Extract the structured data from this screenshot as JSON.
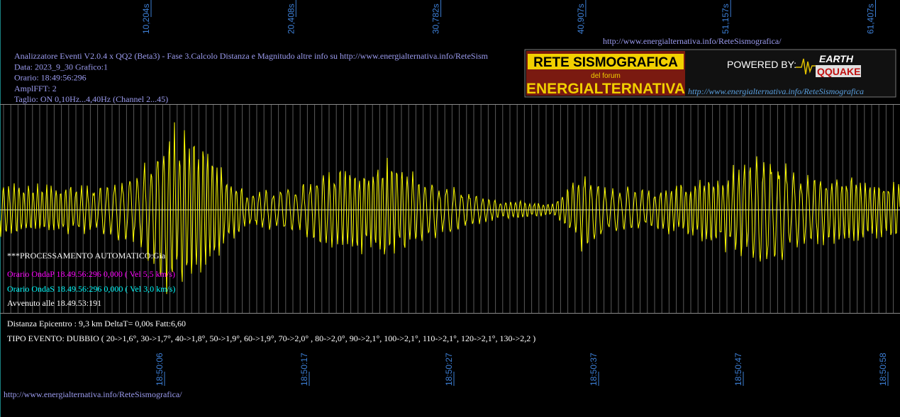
{
  "top_time_labels": [
    "10,204s",
    "20,408s",
    "30,782s",
    "40,907s",
    "51,157s",
    "61,407s"
  ],
  "header_url": "http://www.energialternativa.info/ReteSismografica/",
  "info_lines": [
    "Analizzatore Eventi V2.0.4 x QQ2 (Beta3) - Fase 3.Calcolo Distanza e Magnitudo altre info su http://www.energialternativa.info/ReteSism",
    "Data: 2023_9_30 Grafico:1",
    "Orario: 18:49:56:296",
    "AmplFFT: 2",
    "Taglio: ON 0,10Hz...4,40Hz       (Channel 2...45)"
  ],
  "logo": {
    "title": "RETE SISMOGRAFICA",
    "subtitle": "del forum",
    "brand": "ENERGIALTERNATIVA",
    "powered": "POWERED BY:",
    "earth": "EARTH",
    "quake": "QQUAKE",
    "url": "http://www.energialternativa.info/ReteSismografica"
  },
  "processing": "***PROCESSAMENTO AUTOMATICO:Gia",
  "onda_p": "Orario OndaP 18.49.56:296  0,000 ( Vel 5,5 km/s)",
  "onda_s": "Orario OndaS 18.49.56:296  0,000 ( Vel 3,0 km/s)",
  "avvenuto": "Avvenuto alle 18.49.53:191",
  "distance": "Distanza Epicentro : 9,3 km DeltaT= 0,00s  Fatt:6,60",
  "event_type": "TIPO EVENTO: DUBBIO ( 20->1,6°, 30->1,7°, 40->1,8°, 50->1,9°, 60->1,9°, 70->2,0° , 80->2,0°, 90->2,1°, 100->2,1°, 110->2,1°, 120->2,1°, 130->2,2 )",
  "bottom_time_labels": [
    "18:50:06",
    "18:50:17",
    "18:50:27",
    "18:50:37",
    "18:50:47",
    "18:50:58"
  ],
  "footer_url": "http://www.energialternativa.info/ReteSismografica/"
}
